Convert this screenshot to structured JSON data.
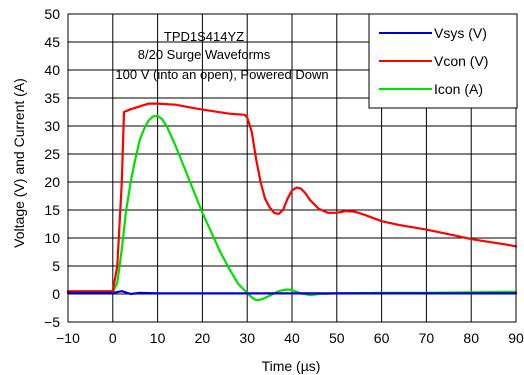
{
  "chart_data": {
    "type": "line",
    "title": "",
    "annotation": [
      "TPD1S414YZ",
      "8/20 Surge Waveforms",
      "100 V (into an open), Powered Down"
    ],
    "xlabel": "Time (µs)",
    "ylabel": "Voltage (V) and Current (A)",
    "xlim": [
      -10,
      90
    ],
    "ylim": [
      -5,
      50
    ],
    "xticks": [
      "−10",
      "0",
      "10",
      "20",
      "30",
      "40",
      "50",
      "60",
      "70",
      "80",
      "90"
    ],
    "xtick_values": [
      -10,
      0,
      10,
      20,
      30,
      40,
      50,
      60,
      70,
      80,
      90
    ],
    "yticks": [
      "−5",
      "0",
      "5",
      "10",
      "15",
      "20",
      "25",
      "30",
      "35",
      "40",
      "45",
      "50"
    ],
    "ytick_values": [
      -5,
      0,
      5,
      10,
      15,
      20,
      25,
      30,
      35,
      40,
      45,
      50
    ],
    "grid": true,
    "legend_position": "top-right",
    "series": [
      {
        "name": "Vsys (V)",
        "color": "#0000CC",
        "x": [
          -10,
          0,
          2,
          4,
          6,
          10,
          20,
          30,
          40,
          50,
          60,
          70,
          80,
          90
        ],
        "y": [
          0.2,
          0.2,
          0.5,
          0.0,
          0.2,
          0.1,
          0.1,
          0.1,
          0.1,
          0.1,
          0.1,
          0.1,
          0.1,
          0.1
        ]
      },
      {
        "name": "Vcon (V)",
        "color": "#FF0000",
        "x": [
          -10,
          0,
          1,
          2,
          2.5,
          4,
          6,
          8,
          10,
          14,
          18,
          22,
          26,
          29.5,
          30,
          31,
          32,
          33,
          34,
          35,
          36,
          37,
          38,
          39,
          40,
          41,
          42,
          43,
          44,
          46,
          48,
          50,
          52,
          54,
          56,
          58,
          60,
          64,
          70,
          76,
          80,
          84,
          88,
          90
        ],
        "y": [
          0.5,
          0.5,
          5,
          20,
          32.5,
          33,
          33.5,
          34,
          34,
          33.8,
          33.2,
          32.7,
          32.2,
          32,
          31.5,
          29,
          24,
          20,
          17,
          15.5,
          14.5,
          14.3,
          15,
          17,
          18.5,
          19,
          18.8,
          18,
          16.8,
          15.2,
          14.5,
          14.5,
          14.8,
          14.7,
          14.2,
          13.6,
          13,
          12.3,
          11.5,
          10.5,
          9.8,
          9.3,
          8.8,
          8.5
        ]
      },
      {
        "name": "Icon (A)",
        "color": "#00E000",
        "x": [
          -10,
          0,
          1,
          2,
          3,
          4,
          5,
          6,
          7,
          8,
          9,
          10,
          11,
          12,
          14,
          16,
          18,
          20,
          22,
          24,
          26,
          28,
          30,
          31,
          32,
          33,
          34,
          35,
          36,
          37,
          38,
          39,
          40,
          41,
          42,
          44,
          46,
          50,
          60,
          70,
          80,
          90
        ],
        "y": [
          0.3,
          0.3,
          2,
          8,
          15,
          20,
          24,
          27.5,
          29.5,
          31,
          31.7,
          31.8,
          31.2,
          30,
          26.5,
          22.5,
          18.5,
          14.5,
          11,
          7.5,
          4.5,
          1.8,
          0.2,
          -0.6,
          -1.1,
          -1.0,
          -0.7,
          -0.3,
          0.1,
          0.5,
          0.7,
          0.8,
          0.7,
          0.4,
          0.1,
          -0.2,
          0.0,
          0.1,
          0.2,
          0.2,
          0.3,
          0.4
        ]
      }
    ]
  }
}
